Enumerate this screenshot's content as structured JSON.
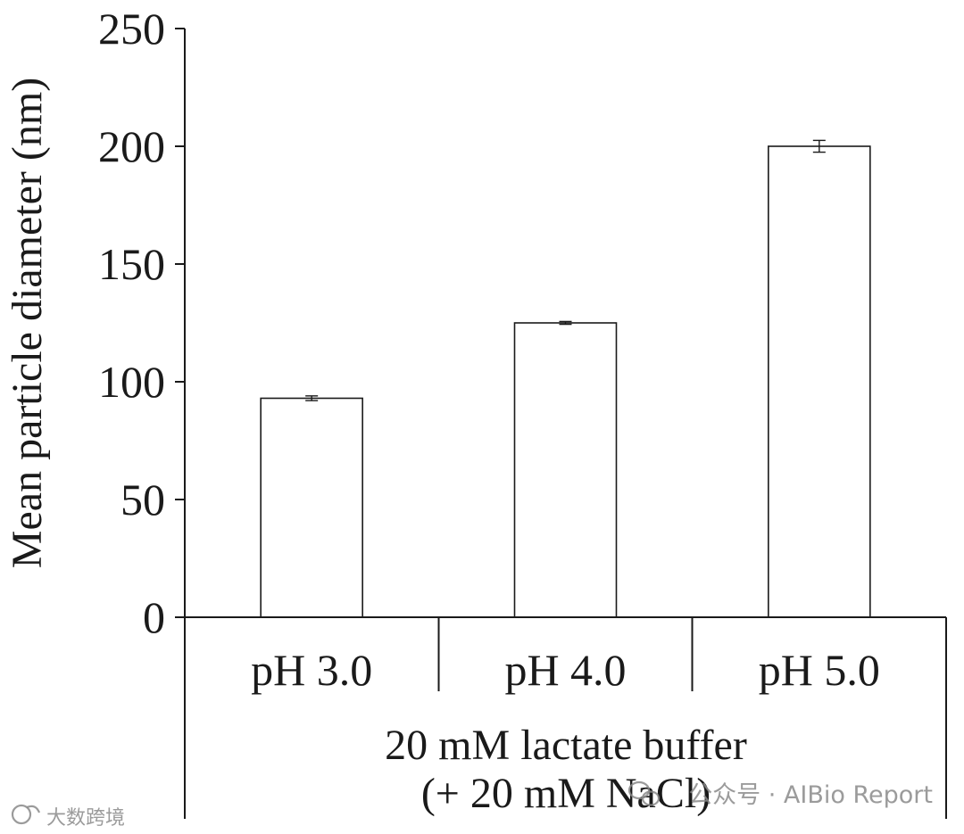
{
  "chart_data": {
    "type": "bar",
    "title": "",
    "xlabel": "",
    "ylabel": "Mean particle diameter (nm)",
    "categories": [
      "pH 3.0",
      "pH 4.0",
      "pH 5.0"
    ],
    "group_labels": [
      "20 mM lactate buffer",
      "(+ 20 mM NaCl)"
    ],
    "values": [
      93,
      125,
      200
    ],
    "errors": [
      1,
      0.6,
      2.5
    ],
    "ylim": [
      0,
      250
    ],
    "yticks": [
      0,
      50,
      100,
      150,
      200,
      250
    ],
    "grid": false,
    "colors": {
      "bar_fill": "#ffffff",
      "bar_edge": "#1a1a1a",
      "axis": "#1a1a1a"
    }
  },
  "watermarks": {
    "left": "大数跨境",
    "right": "公众号 · AIBio Report",
    "left_icon": "brand-logo-icon",
    "right_icon": "wechat-icon"
  }
}
